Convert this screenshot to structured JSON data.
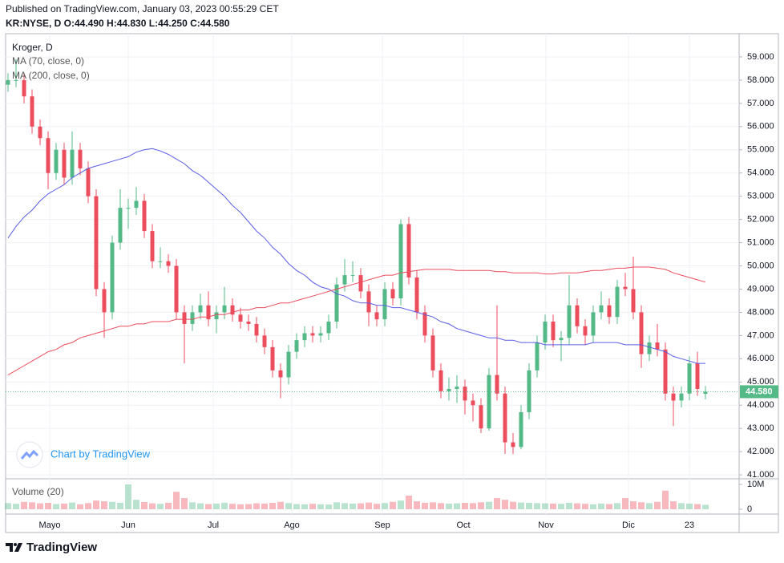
{
  "header": {
    "published": "Published on TradingView.com, January 03, 2023 00:55:29 CET",
    "quote": "KR:NYSE, D  O:44.490 H:44.830 L:44.250 C:44.580"
  },
  "footer": {
    "brand": "TradingView"
  },
  "chart_data": {
    "type": "candlestick",
    "title": "Kroger, D",
    "watermark": "Chart by TradingView",
    "up_color": "#53b987",
    "down_color": "#eb4d5c",
    "xlim": [
      -0.3,
      91.2
    ],
    "xticks": [
      {
        "value": 5.2,
        "label": "Mayo"
      },
      {
        "value": 15,
        "label": "Jun"
      },
      {
        "value": 25.6,
        "label": "Jul"
      },
      {
        "value": 35.4,
        "label": "Ago"
      },
      {
        "value": 46.7,
        "label": "Sep"
      },
      {
        "value": 56.8,
        "label": "Oct"
      },
      {
        "value": 67.1,
        "label": "Nov"
      },
      {
        "value": 77.4,
        "label": "Dic"
      },
      {
        "value": 85,
        "label": "23"
      }
    ],
    "ylim": [
      40.83,
      60.0
    ],
    "yticks": [
      {
        "value": 41,
        "label": "41.000"
      },
      {
        "value": 42,
        "label": "42.000"
      },
      {
        "value": 43,
        "label": "43.000"
      },
      {
        "value": 44,
        "label": "44.000"
      },
      {
        "value": 45,
        "label": "45.000"
      },
      {
        "value": 46,
        "label": "46.000"
      },
      {
        "value": 47,
        "label": "47.000"
      },
      {
        "value": 48,
        "label": "48.000"
      },
      {
        "value": 49,
        "label": "49.000"
      },
      {
        "value": 50,
        "label": "50.000"
      },
      {
        "value": 51,
        "label": "51.000"
      },
      {
        "value": 52,
        "label": "52.000"
      },
      {
        "value": 53,
        "label": "53.000"
      },
      {
        "value": 54,
        "label": "54.000"
      },
      {
        "value": 55,
        "label": "55.000"
      },
      {
        "value": 56,
        "label": "56.000"
      },
      {
        "value": 57,
        "label": "57.000"
      },
      {
        "value": 58,
        "label": "58.000"
      },
      {
        "value": 59,
        "label": "59.000"
      }
    ],
    "grid": true,
    "last_price_label": "44.580",
    "open": [
      57.8,
      58,
      58,
      57.3,
      56,
      55.5,
      54,
      55,
      53.8,
      55,
      54.2,
      53,
      49,
      48,
      51,
      52.5,
      52.5,
      52.8,
      51.5,
      50.2,
      50.2,
      50,
      48,
      47.5,
      48,
      48.3,
      47.7,
      48,
      48.3,
      47.9,
      47.6,
      47.5,
      47,
      46.5,
      45.5,
      45.2,
      46.3,
      46.8,
      47.1,
      47,
      47.1,
      47.6,
      49.2,
      49.6,
      49.6,
      48.9,
      48,
      47.7,
      49,
      48.6,
      51.8,
      49.5,
      48,
      47,
      45.5,
      44.6,
      44.7,
      44.8,
      44.2,
      44,
      43,
      45.3,
      44.5,
      42.4,
      42.2,
      43.7,
      45.5,
      46.7,
      47.6,
      46.8,
      46.9,
      48.3,
      47.4,
      47,
      48,
      48.3,
      47.8,
      49.1,
      49,
      48,
      46.2,
      46.7,
      46.4,
      44.5,
      44.2,
      44.5,
      45.8,
      44.49
    ],
    "high": [
      58.3,
      58.9,
      58.3,
      57.6,
      56.3,
      55.8,
      55.3,
      55.3,
      55.8,
      55.3,
      54.5,
      53.3,
      49.3,
      51.3,
      53.3,
      52.9,
      53.4,
      53.1,
      51.8,
      50.8,
      50.5,
      50.3,
      48.3,
      48.3,
      48.8,
      48.9,
      48.3,
      49.1,
      48.6,
      48.2,
      47.9,
      47.8,
      47.3,
      46.8,
      45.8,
      46.6,
      47.1,
      47.4,
      47.4,
      47.4,
      47.9,
      49.5,
      50.3,
      50.2,
      49.9,
      49.2,
      48.3,
      49.3,
      49.3,
      52,
      52.1,
      49.8,
      48.3,
      47.3,
      45.8,
      45.2,
      45.3,
      45.1,
      44.5,
      44.3,
      45.6,
      48.3,
      44.8,
      42.8,
      44,
      45.8,
      47,
      47.9,
      47.9,
      47.2,
      49.6,
      48.6,
      47.7,
      48.3,
      48.9,
      48.6,
      49.4,
      49.7,
      50.4,
      48.3,
      47,
      47.5,
      46.7,
      44.8,
      44.8,
      46.1,
      46.3,
      44.83
    ],
    "low": [
      57.5,
      57.7,
      57.0,
      55.7,
      55.2,
      53.3,
      53.7,
      53.5,
      53.5,
      53.9,
      52.7,
      48.7,
      46.9,
      47.7,
      50.7,
      51.6,
      52.2,
      51.2,
      49.9,
      49.9,
      49.7,
      47.7,
      45.8,
      47.2,
      47.7,
      47.4,
      47.1,
      47.7,
      47.6,
      47.3,
      47.2,
      46.7,
      46.2,
      45.2,
      44.3,
      44.9,
      46,
      46.5,
      46.7,
      46.7,
      46.8,
      47.3,
      48.9,
      49.3,
      48.6,
      47.4,
      47.4,
      47.4,
      48.3,
      48.3,
      49.2,
      47.7,
      46.7,
      45.2,
      44.3,
      44.2,
      44.1,
      43.6,
      43.3,
      42.8,
      42.9,
      44.2,
      41.9,
      41.9,
      42.1,
      43.4,
      45.2,
      46.4,
      46.5,
      45.9,
      46.6,
      47.1,
      46.6,
      46.7,
      47.7,
      47.5,
      47.5,
      48.7,
      47.7,
      45.6,
      45.9,
      46.1,
      44.2,
      43.1,
      43.9,
      44.2,
      44.4,
      44.25
    ],
    "close": [
      58,
      58,
      57.3,
      56,
      55.5,
      54,
      55,
      53.8,
      55,
      54.2,
      53,
      49,
      48,
      51,
      52.5,
      52.5,
      52.8,
      51.5,
      50.2,
      50.2,
      50,
      48,
      47.5,
      48,
      48.3,
      47.7,
      48,
      48.3,
      47.9,
      47.6,
      47.5,
      47,
      46.5,
      45.5,
      45.2,
      46.3,
      46.8,
      47.1,
      47,
      47.1,
      47.6,
      49.2,
      49.6,
      49.6,
      48.9,
      48,
      47.7,
      49,
      48.6,
      51.8,
      49.5,
      48,
      47,
      45.5,
      44.6,
      44.7,
      44.8,
      44.2,
      44,
      43,
      45.3,
      44.5,
      42.4,
      42.2,
      43.7,
      45.5,
      46.7,
      47.6,
      46.8,
      46.9,
      48.3,
      47.4,
      47,
      48,
      48.3,
      47.8,
      49.1,
      49,
      48,
      46.2,
      46.7,
      46.4,
      44.5,
      44.2,
      44.5,
      45.8,
      44.7,
      44.58
    ],
    "series": [
      {
        "name": "MA (70, close, 0)",
        "color": "#5b5ce6",
        "values": [
          51.2,
          51.7,
          52.1,
          52.4,
          52.8,
          53.1,
          53.3,
          53.5,
          53.8,
          54.0,
          54.2,
          54.3,
          54.4,
          54.5,
          54.6,
          54.7,
          54.9,
          55.0,
          55.05,
          54.95,
          54.8,
          54.6,
          54.4,
          54.1,
          53.9,
          53.6,
          53.3,
          53.0,
          52.6,
          52.3,
          51.9,
          51.5,
          51.2,
          50.8,
          50.5,
          50.1,
          49.8,
          49.6,
          49.3,
          49.1,
          49.0,
          48.8,
          48.7,
          48.5,
          48.4,
          48.4,
          48.3,
          48.3,
          48.2,
          48.2,
          48.1,
          48.0,
          47.9,
          47.8,
          47.6,
          47.5,
          47.3,
          47.2,
          47.1,
          47.0,
          46.9,
          46.9,
          46.8,
          46.8,
          46.7,
          46.7,
          46.7,
          46.6,
          46.6,
          46.6,
          46.6,
          46.6,
          46.6,
          46.7,
          46.7,
          46.7,
          46.7,
          46.6,
          46.6,
          46.6,
          46.5,
          46.4,
          46.3,
          46.1,
          46.0,
          45.9,
          45.8,
          45.8
        ]
      },
      {
        "name": "MA (200, close, 0)",
        "color": "#eb4d5c",
        "values": [
          45.3,
          45.5,
          45.7,
          45.9,
          46.1,
          46.3,
          46.4,
          46.6,
          46.7,
          46.9,
          47.0,
          47.1,
          47.2,
          47.3,
          47.4,
          47.4,
          47.5,
          47.5,
          47.6,
          47.6,
          47.6,
          47.7,
          47.7,
          47.7,
          47.8,
          47.8,
          47.9,
          47.9,
          48.0,
          48.1,
          48.1,
          48.2,
          48.2,
          48.3,
          48.4,
          48.4,
          48.5,
          48.6,
          48.7,
          48.8,
          48.9,
          49.0,
          49.1,
          49.2,
          49.3,
          49.4,
          49.5,
          49.6,
          49.6,
          49.7,
          49.75,
          49.8,
          49.85,
          49.85,
          49.85,
          49.85,
          49.8,
          49.8,
          49.8,
          49.8,
          49.8,
          49.75,
          49.75,
          49.7,
          49.7,
          49.7,
          49.7,
          49.65,
          49.65,
          49.7,
          49.7,
          49.7,
          49.75,
          49.8,
          49.8,
          49.85,
          49.9,
          49.9,
          49.95,
          49.95,
          49.95,
          49.9,
          49.85,
          49.7,
          49.6,
          49.5,
          49.4,
          49.3
        ]
      }
    ],
    "volume": {
      "name": "Volume (20)",
      "ylim": [
        -1940000,
        12260000
      ],
      "yticks": [
        0,
        {
          "value": 10000000,
          "label": "10M"
        }
      ],
      "values": [
        2500000,
        2200000,
        3000000,
        2800000,
        2400000,
        2600000,
        2100000,
        2300000,
        2700000,
        2000000,
        2500000,
        3500000,
        3200000,
        3000000,
        2600000,
        10000000,
        3800000,
        2900000,
        2400000,
        2200000,
        2600000,
        7000000,
        4500000,
        2800000,
        2400000,
        2100000,
        2300000,
        2600000,
        2200000,
        2000000,
        2100000,
        2400000,
        2300000,
        2600000,
        3000000,
        2500000,
        2100000,
        2000000,
        2200000,
        2000000,
        1900000,
        2800000,
        2500000,
        2300000,
        2400000,
        2700000,
        2200000,
        2500000,
        3000000,
        3500000,
        5500000,
        3200000,
        2600000,
        2800000,
        2500000,
        2300000,
        2400000,
        2600000,
        2500000,
        2800000,
        3000000,
        4500000,
        3800000,
        3000000,
        2700000,
        2600000,
        2500000,
        2400000,
        2300000,
        2200000,
        2600000,
        2400000,
        2200000,
        2000000,
        2300000,
        2100000,
        2500000,
        4500000,
        3200000,
        2800000,
        2500000,
        3000000,
        7500000,
        3200000,
        2500000,
        2300000,
        2100000,
        1800000
      ]
    }
  }
}
